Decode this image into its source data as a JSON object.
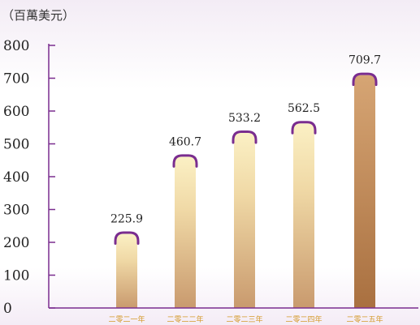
{
  "chart_data": {
    "type": "bar",
    "unit_label": "（百萬美元）",
    "categories": [
      "二零二一年",
      "二零二二年",
      "二零二三年",
      "二零二四年",
      "二零二五年"
    ],
    "values": [
      225.9,
      460.7,
      533.2,
      562.5,
      709.7
    ],
    "value_labels": [
      "225.9",
      "460.7",
      "533.2",
      "562.5",
      "709.7"
    ],
    "yticks": [
      0,
      100,
      200,
      300,
      400,
      500,
      600,
      700,
      800
    ],
    "ylim": [
      0,
      800
    ],
    "grid": false,
    "legend": "none",
    "colors": {
      "axis": "#7a2d8f",
      "bar_outline": "#7a2d8f",
      "bar_top_light": "#fbf0c4",
      "bar_bottom": "#c99a6e",
      "last_bar_top": "#d6a574",
      "last_bar_bottom": "#a97040",
      "category_label": "#d49a2a",
      "last_category_label": "#7a2d8f"
    }
  }
}
